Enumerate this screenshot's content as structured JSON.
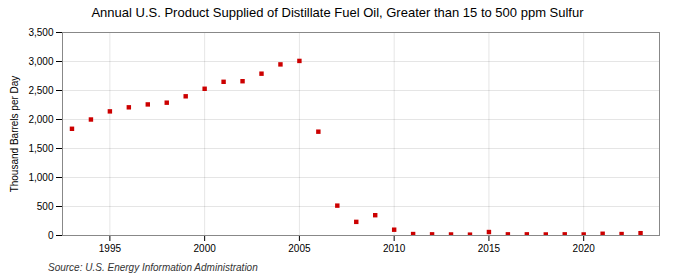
{
  "chart_data": {
    "type": "scatter",
    "title": "Annual U.S. Product Supplied of Distillate Fuel Oil, Greater than 15 to 500 ppm Sulfur",
    "ylabel": "Thousand Barrels per Day",
    "source": "Source: U.S. Energy Information Administration",
    "x": [
      1993,
      1994,
      1995,
      1996,
      1997,
      1998,
      1999,
      2000,
      2001,
      2002,
      2003,
      2004,
      2005,
      2006,
      2007,
      2008,
      2009,
      2010,
      2011,
      2012,
      2013,
      2014,
      2015,
      2016,
      2017,
      2018,
      2019,
      2020,
      2021,
      2022,
      2023
    ],
    "values": [
      1840,
      2000,
      2140,
      2210,
      2260,
      2290,
      2400,
      2530,
      2650,
      2660,
      2790,
      2950,
      3010,
      1790,
      515,
      235,
      350,
      100,
      25,
      20,
      18,
      15,
      60,
      20,
      20,
      18,
      20,
      18,
      30,
      25,
      40
    ],
    "color": "#cc0000",
    "marker": "square",
    "xlim": [
      1992.5,
      2024
    ],
    "xticks": [
      1995,
      2000,
      2005,
      2010,
      2015,
      2020
    ],
    "ylim": [
      0,
      3500
    ],
    "yticks": [
      0,
      500,
      {
        "value": 1000,
        "label": "1,000"
      },
      {
        "value": 1500,
        "label": "1,500"
      },
      {
        "value": 2000,
        "label": "2,000"
      },
      {
        "value": 2500,
        "label": "2,500"
      },
      {
        "value": 3000,
        "label": "3,000"
      },
      {
        "value": 3500,
        "label": "3,500"
      }
    ],
    "grid": true
  }
}
